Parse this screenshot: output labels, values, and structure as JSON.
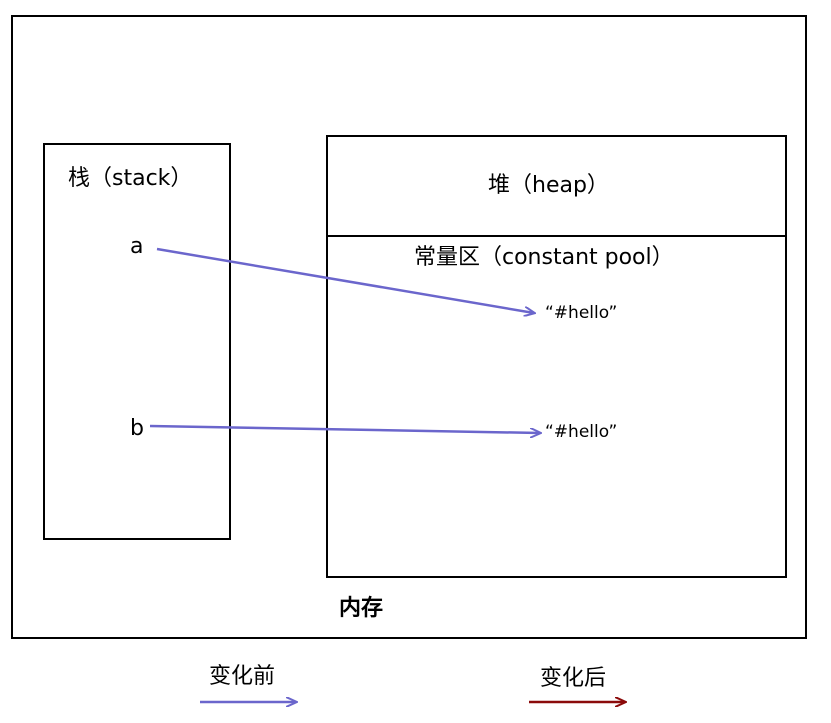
{
  "memory": {
    "label": "内存"
  },
  "stack": {
    "title": "栈（stack）"
  },
  "heap": {
    "title": "堆（heap）",
    "constant_pool": {
      "title": "常量区（constant pool）"
    }
  },
  "variables": [
    {
      "name": "a"
    },
    {
      "name": "b"
    }
  ],
  "strings": [
    {
      "text": "“#hello”"
    },
    {
      "text": "“#hello”"
    }
  ],
  "legend": {
    "before": {
      "label": "变化前",
      "color": "#6b66cc"
    },
    "after": {
      "label": "变化后",
      "color": "#8b0a0a"
    }
  },
  "colors": {
    "line": "#000000"
  }
}
